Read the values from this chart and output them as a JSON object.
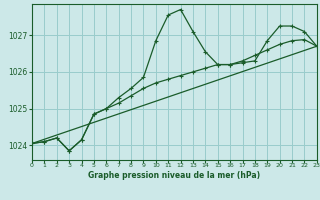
{
  "title": "Graphe pression niveau de la mer (hPa)",
  "bg_color": "#cce8e8",
  "grid_color": "#99cccc",
  "line_color": "#1a5c2a",
  "x_min": 0,
  "x_max": 23,
  "y_min": 1023.6,
  "y_max": 1027.85,
  "yticks": [
    1024,
    1025,
    1026,
    1027
  ],
  "xticks": [
    0,
    1,
    2,
    3,
    4,
    5,
    6,
    7,
    8,
    9,
    10,
    11,
    12,
    13,
    14,
    15,
    16,
    17,
    18,
    19,
    20,
    21,
    22,
    23
  ],
  "series1_x": [
    0,
    1,
    2,
    3,
    4,
    5,
    6,
    7,
    8,
    9,
    10,
    11,
    12,
    13,
    14,
    15,
    16,
    17,
    18,
    19,
    20,
    21,
    22,
    23
  ],
  "series1_y": [
    1024.05,
    1024.1,
    1024.2,
    1023.85,
    1024.15,
    1024.85,
    1025.0,
    1025.3,
    1025.55,
    1025.85,
    1026.85,
    1027.55,
    1027.7,
    1027.1,
    1026.55,
    1026.2,
    1026.2,
    1026.25,
    1026.3,
    1026.85,
    1027.25,
    1027.25,
    1027.1,
    1026.7
  ],
  "series2_x": [
    0,
    1,
    2,
    3,
    4,
    5,
    6,
    7,
    8,
    9,
    10,
    11,
    12,
    13,
    14,
    15,
    16,
    17,
    18,
    19,
    20,
    21,
    22,
    23
  ],
  "series2_y": [
    1024.05,
    1024.1,
    1024.2,
    1023.85,
    1024.15,
    1024.85,
    1025.0,
    1025.15,
    1025.35,
    1025.55,
    1025.7,
    1025.8,
    1025.9,
    1026.0,
    1026.1,
    1026.2,
    1026.2,
    1026.3,
    1026.45,
    1026.6,
    1026.75,
    1026.85,
    1026.88,
    1026.7
  ],
  "series3_x": [
    0,
    23
  ],
  "series3_y": [
    1024.05,
    1026.7
  ],
  "marker": "+"
}
